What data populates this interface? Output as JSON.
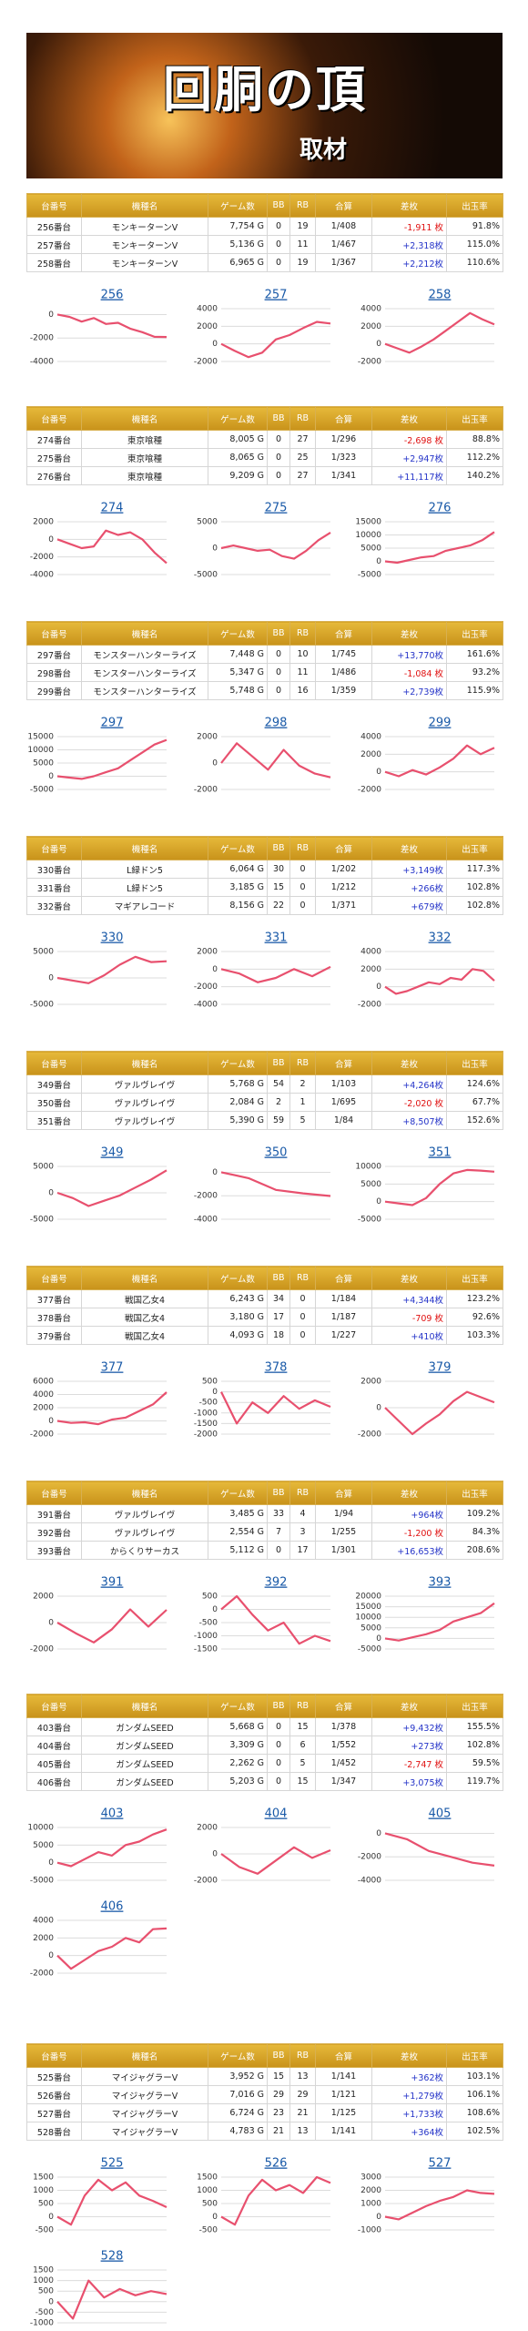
{
  "header": {
    "title": "回胴の頂",
    "subtitle": "取材"
  },
  "columns": [
    "台番号",
    "機種名",
    "ゲーム数",
    "BB",
    "RB",
    "合算",
    "差枚",
    "出玉率"
  ],
  "groups": [
    {
      "rows": [
        [
          "256番台",
          "モンキーターンV",
          "7,754 G",
          "0",
          "19",
          "1/408",
          "-1,911 枚",
          "91.8%"
        ],
        [
          "257番台",
          "モンキーターンV",
          "5,136 G",
          "0",
          "11",
          "1/467",
          "+2,318枚",
          "115.0%"
        ],
        [
          "258番台",
          "モンキーターンV",
          "6,965 G",
          "0",
          "19",
          "1/367",
          "+2,212枚",
          "110.6%"
        ]
      ],
      "charts": [
        {
          "title": "256",
          "ylim": [
            -4000,
            500
          ],
          "yticks": [
            0,
            -2000,
            -4000
          ],
          "values": [
            0,
            -200,
            -600,
            -300,
            -800,
            -700,
            -1200,
            -1500,
            -1900,
            -1911
          ]
        },
        {
          "title": "257",
          "ylim": [
            -2000,
            4000
          ],
          "yticks": [
            4000,
            2000,
            0,
            -2000
          ],
          "values": [
            0,
            -800,
            -1500,
            -1000,
            500,
            1000,
            1800,
            2500,
            2318
          ]
        },
        {
          "title": "258",
          "ylim": [
            -2000,
            4000
          ],
          "yticks": [
            4000,
            2000,
            0,
            -2000
          ],
          "values": [
            0,
            -500,
            -1000,
            -300,
            500,
            1500,
            2500,
            3500,
            2800,
            2212
          ]
        }
      ]
    },
    {
      "rows": [
        [
          "274番台",
          "東京喰種",
          "8,005 G",
          "0",
          "27",
          "1/296",
          "-2,698 枚",
          "88.8%"
        ],
        [
          "275番台",
          "東京喰種",
          "8,065 G",
          "0",
          "25",
          "1/323",
          "+2,947枚",
          "112.2%"
        ],
        [
          "276番台",
          "東京喰種",
          "9,209 G",
          "0",
          "27",
          "1/341",
          "+11,117枚",
          "140.2%"
        ]
      ],
      "charts": [
        {
          "title": "274",
          "ylim": [
            -4000,
            2000
          ],
          "yticks": [
            2000,
            0,
            -2000,
            -4000
          ],
          "values": [
            0,
            -500,
            -1000,
            -800,
            1000,
            500,
            800,
            0,
            -1500,
            -2698
          ]
        },
        {
          "title": "275",
          "ylim": [
            -5000,
            5000
          ],
          "yticks": [
            5000,
            0,
            -5000
          ],
          "values": [
            0,
            500,
            0,
            -500,
            -300,
            -1500,
            -2000,
            -500,
            1500,
            2947
          ]
        },
        {
          "title": "276",
          "ylim": [
            -5000,
            15000
          ],
          "yticks": [
            15000,
            10000,
            5000,
            0,
            -5000
          ],
          "values": [
            0,
            -500,
            500,
            1500,
            2000,
            4000,
            5000,
            6000,
            8000,
            11117
          ]
        }
      ]
    },
    {
      "rows": [
        [
          "297番台",
          "モンスターハンターライズ",
          "7,448 G",
          "0",
          "10",
          "1/745",
          "+13,770枚",
          "161.6%"
        ],
        [
          "298番台",
          "モンスターハンターライズ",
          "5,347 G",
          "0",
          "11",
          "1/486",
          "-1,084 枚",
          "93.2%"
        ],
        [
          "299番台",
          "モンスターハンターライズ",
          "5,748 G",
          "0",
          "16",
          "1/359",
          "+2,739枚",
          "115.9%"
        ]
      ],
      "charts": [
        {
          "title": "297",
          "ylim": [
            -5000,
            15000
          ],
          "yticks": [
            15000,
            10000,
            5000,
            0,
            -5000
          ],
          "values": [
            0,
            -500,
            -1000,
            0,
            1500,
            3000,
            6000,
            9000,
            12000,
            13770
          ]
        },
        {
          "title": "298",
          "ylim": [
            -2000,
            2000
          ],
          "yticks": [
            2000,
            0,
            -2000
          ],
          "values": [
            0,
            1500,
            500,
            -500,
            1000,
            -200,
            -800,
            -1084
          ]
        },
        {
          "title": "299",
          "ylim": [
            -2000,
            4000
          ],
          "yticks": [
            4000,
            2000,
            0,
            -2000
          ],
          "values": [
            0,
            -500,
            200,
            -300,
            500,
            1500,
            3000,
            2000,
            2739
          ]
        }
      ]
    },
    {
      "rows": [
        [
          "330番台",
          "L緑ドン5",
          "6,064 G",
          "30",
          "0",
          "1/202",
          "+3,149枚",
          "117.3%"
        ],
        [
          "331番台",
          "L緑ドン5",
          "3,185 G",
          "15",
          "0",
          "1/212",
          "+266枚",
          "102.8%"
        ],
        [
          "332番台",
          "マギアレコード",
          "8,156 G",
          "22",
          "0",
          "1/371",
          "+679枚",
          "102.8%"
        ]
      ],
      "charts": [
        {
          "title": "330",
          "ylim": [
            -5000,
            5000
          ],
          "yticks": [
            5000,
            0,
            -5000
          ],
          "values": [
            0,
            -500,
            -1000,
            500,
            2500,
            4000,
            3000,
            3149
          ]
        },
        {
          "title": "331",
          "ylim": [
            -4000,
            2000
          ],
          "yticks": [
            2000,
            0,
            -2000,
            -4000
          ],
          "values": [
            0,
            -500,
            -1500,
            -1000,
            0,
            -800,
            266
          ]
        },
        {
          "title": "332",
          "ylim": [
            -2000,
            4000
          ],
          "yticks": [
            4000,
            2000,
            0,
            -2000
          ],
          "values": [
            0,
            -800,
            -500,
            0,
            500,
            300,
            1000,
            800,
            2000,
            1800,
            679
          ]
        }
      ]
    },
    {
      "rows": [
        [
          "349番台",
          "ヴァルヴレイヴ",
          "5,768 G",
          "54",
          "2",
          "1/103",
          "+4,264枚",
          "124.6%"
        ],
        [
          "350番台",
          "ヴァルヴレイヴ",
          "2,084 G",
          "2",
          "1",
          "1/695",
          "-2,020 枚",
          "67.7%"
        ],
        [
          "351番台",
          "ヴァルヴレイヴ",
          "5,390 G",
          "59",
          "5",
          "1/84",
          "+8,507枚",
          "152.6%"
        ]
      ],
      "charts": [
        {
          "title": "349",
          "ylim": [
            -5000,
            5000
          ],
          "yticks": [
            5000,
            0,
            -5000
          ],
          "values": [
            0,
            -1000,
            -2500,
            -1500,
            -500,
            1000,
            2500,
            4264
          ]
        },
        {
          "title": "350",
          "ylim": [
            -4000,
            500
          ],
          "yticks": [
            0,
            -2000,
            -4000
          ],
          "values": [
            0,
            -500,
            -1500,
            -1800,
            -2020
          ]
        },
        {
          "title": "351",
          "ylim": [
            -5000,
            10000
          ],
          "yticks": [
            10000,
            5000,
            0,
            -5000
          ],
          "values": [
            0,
            -500,
            -1000,
            1000,
            5000,
            8000,
            9000,
            8800,
            8507
          ]
        }
      ]
    },
    {
      "rows": [
        [
          "377番台",
          "戦国乙女4",
          "6,243 G",
          "34",
          "0",
          "1/184",
          "+4,344枚",
          "123.2%"
        ],
        [
          "378番台",
          "戦国乙女4",
          "3,180 G",
          "17",
          "0",
          "1/187",
          "-709 枚",
          "92.6%"
        ],
        [
          "379番台",
          "戦国乙女4",
          "4,093 G",
          "18",
          "0",
          "1/227",
          "+410枚",
          "103.3%"
        ]
      ],
      "charts": [
        {
          "title": "377",
          "ylim": [
            -2000,
            6000
          ],
          "yticks": [
            6000,
            4000,
            2000,
            0,
            -2000
          ],
          "values": [
            0,
            -300,
            -200,
            -500,
            200,
            500,
            1500,
            2500,
            4344
          ]
        },
        {
          "title": "378",
          "ylim": [
            -2000,
            500
          ],
          "yticks": [
            500,
            0,
            -500,
            -1000,
            -1500,
            -2000
          ],
          "values": [
            0,
            -1500,
            -500,
            -1000,
            -200,
            -800,
            -400,
            -709
          ]
        },
        {
          "title": "379",
          "ylim": [
            -2000,
            2000
          ],
          "yticks": [
            2000,
            0,
            -2000
          ],
          "values": [
            0,
            -1000,
            -2000,
            -1200,
            -500,
            500,
            1200,
            800,
            410
          ]
        }
      ]
    },
    {
      "rows": [
        [
          "391番台",
          "ヴァルヴレイヴ",
          "3,485 G",
          "33",
          "4",
          "1/94",
          "+964枚",
          "109.2%"
        ],
        [
          "392番台",
          "ヴァルヴレイヴ",
          "2,554 G",
          "7",
          "3",
          "1/255",
          "-1,200 枚",
          "84.3%"
        ],
        [
          "393番台",
          "からくりサーカス",
          "5,112 G",
          "0",
          "17",
          "1/301",
          "+16,653枚",
          "208.6%"
        ]
      ],
      "charts": [
        {
          "title": "391",
          "ylim": [
            -2000,
            2000
          ],
          "yticks": [
            2000,
            0,
            -2000
          ],
          "values": [
            0,
            -800,
            -1500,
            -500,
            1000,
            -300,
            964
          ]
        },
        {
          "title": "392",
          "ylim": [
            -1500,
            500
          ],
          "yticks": [
            500,
            0,
            -500,
            -1000,
            -1500
          ],
          "values": [
            0,
            500,
            -200,
            -800,
            -500,
            -1300,
            -1000,
            -1200
          ]
        },
        {
          "title": "393",
          "ylim": [
            -5000,
            20000
          ],
          "yticks": [
            20000,
            15000,
            10000,
            5000,
            0,
            -5000
          ],
          "values": [
            0,
            -1000,
            500,
            2000,
            4000,
            8000,
            10000,
            12000,
            16653
          ]
        }
      ]
    },
    {
      "rows": [
        [
          "403番台",
          "ガンダムSEED",
          "5,668 G",
          "0",
          "15",
          "1/378",
          "+9,432枚",
          "155.5%"
        ],
        [
          "404番台",
          "ガンダムSEED",
          "3,309 G",
          "0",
          "6",
          "1/552",
          "+273枚",
          "102.8%"
        ],
        [
          "405番台",
          "ガンダムSEED",
          "2,262 G",
          "0",
          "5",
          "1/452",
          "-2,747 枚",
          "59.5%"
        ],
        [
          "406番台",
          "ガンダムSEED",
          "5,203 G",
          "0",
          "15",
          "1/347",
          "+3,075枚",
          "119.7%"
        ]
      ],
      "charts": [
        {
          "title": "403",
          "ylim": [
            -5000,
            10000
          ],
          "yticks": [
            10000,
            5000,
            0,
            -5000
          ],
          "values": [
            0,
            -1000,
            1000,
            3000,
            2000,
            5000,
            6000,
            8000,
            9432
          ]
        },
        {
          "title": "404",
          "ylim": [
            -2000,
            2000
          ],
          "yticks": [
            2000,
            0,
            -2000
          ],
          "values": [
            0,
            -1000,
            -1500,
            -500,
            500,
            -300,
            273
          ]
        },
        {
          "title": "405",
          "ylim": [
            -4000,
            500
          ],
          "yticks": [
            0,
            -2000,
            -4000
          ],
          "values": [
            0,
            -500,
            -1500,
            -2000,
            -2500,
            -2747
          ]
        },
        {
          "title": "406",
          "ylim": [
            -2000,
            4000
          ],
          "yticks": [
            4000,
            2000,
            0,
            -2000
          ],
          "values": [
            0,
            -1500,
            -500,
            500,
            1000,
            2000,
            1500,
            3000,
            3075
          ]
        }
      ]
    },
    {
      "rows": [
        [
          "525番台",
          "マイジャグラーV",
          "3,952 G",
          "15",
          "13",
          "1/141",
          "+362枚",
          "103.1%"
        ],
        [
          "526番台",
          "マイジャグラーV",
          "7,016 G",
          "29",
          "29",
          "1/121",
          "+1,279枚",
          "106.1%"
        ],
        [
          "527番台",
          "マイジャグラーV",
          "6,724 G",
          "23",
          "21",
          "1/125",
          "+1,733枚",
          "108.6%"
        ],
        [
          "528番台",
          "マイジャグラーV",
          "4,783 G",
          "21",
          "13",
          "1/141",
          "+364枚",
          "102.5%"
        ]
      ],
      "charts": [
        {
          "title": "525",
          "ylim": [
            -500,
            1500
          ],
          "yticks": [
            1500,
            1000,
            500,
            0,
            -500
          ],
          "values": [
            0,
            -300,
            800,
            1400,
            1000,
            1300,
            800,
            600,
            362
          ]
        },
        {
          "title": "526",
          "ylim": [
            -500,
            1500
          ],
          "yticks": [
            1500,
            1000,
            500,
            0,
            -500
          ],
          "values": [
            0,
            -300,
            800,
            1400,
            1000,
            1200,
            900,
            1500,
            1279
          ]
        },
        {
          "title": "527",
          "ylim": [
            -1000,
            3000
          ],
          "yticks": [
            3000,
            2000,
            1000,
            0,
            -1000
          ],
          "values": [
            0,
            -200,
            300,
            800,
            1200,
            1500,
            2000,
            1800,
            1733
          ]
        },
        {
          "title": "528",
          "ylim": [
            -1000,
            1500
          ],
          "yticks": [
            1500,
            1000,
            500,
            0,
            -500,
            -1000
          ],
          "values": [
            0,
            -800,
            1000,
            200,
            600,
            300,
            500,
            364
          ]
        }
      ]
    }
  ]
}
